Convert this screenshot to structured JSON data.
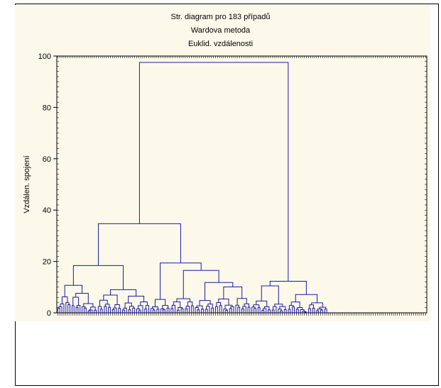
{
  "chart_data": {
    "type": "dendrogram",
    "title_lines": [
      "Str. diagram pro 183 případů",
      "Wardova metoda",
      "Euklid. vzdálenosti"
    ],
    "ylabel": "Vzdálen. spojení",
    "ylim": [
      0,
      100
    ],
    "yticks": [
      0,
      20,
      40,
      60,
      80,
      100
    ],
    "leaf_count": 183,
    "colors": {
      "line": "#1a1aaa",
      "axis": "#000000",
      "background": "#fdf9ea"
    },
    "major_merges": [
      {
        "name": "root",
        "height": 97.5
      },
      {
        "name": "left-main",
        "height": 34.7
      },
      {
        "name": "left-a",
        "height": 18.4
      },
      {
        "name": "left-b",
        "height": 19.4
      },
      {
        "name": "left-b-sub",
        "height": 16.5
      },
      {
        "name": "left-b-sub2",
        "height": 11.8
      },
      {
        "name": "left-b-sub3",
        "height": 10.1
      },
      {
        "name": "right-main",
        "height": 12.3
      },
      {
        "name": "right-a",
        "height": 10.5
      },
      {
        "name": "right-b",
        "height": 7.1
      }
    ]
  }
}
